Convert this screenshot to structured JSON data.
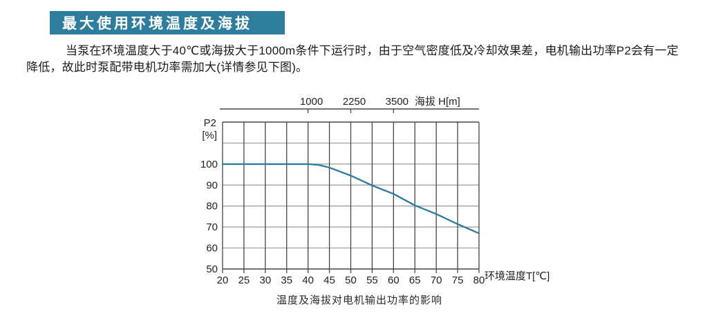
{
  "page": {
    "header": {
      "title": "最大使用环境温度及海拔",
      "bg_color": "#2e7d9d",
      "text_color": "#ffffff"
    },
    "paragraph": {
      "lines": [
        "当泵在环境温度大于40℃或海拔大于1000m条件下运行时，由于空气密度低及冷却效果差，电机输出功率P2会有一定",
        "降低，故此时泵配带电机功率需加大(详情参见下图)。"
      ]
    },
    "caption": "温度及海拔对电机输出功率的影响"
  },
  "chart_data": {
    "type": "line",
    "title": "温度及海拔对电机输出功率的影响",
    "x_axis": {
      "label": "环境温度T[℃]",
      "ticks": [
        20,
        25,
        30,
        35,
        40,
        45,
        50,
        55,
        60,
        65,
        70,
        75,
        80
      ],
      "range": [
        20,
        80
      ]
    },
    "y_axis": {
      "label_line1": "P2",
      "label_line2": "[%]",
      "tick_labels": [
        100,
        90,
        80,
        70,
        60,
        50
      ],
      "grid_values": [
        50,
        60,
        70,
        80,
        90,
        100,
        110,
        120
      ],
      "range": [
        50,
        120
      ]
    },
    "top_axis": {
      "label": "海拔 H[m]",
      "ticks": [
        {
          "label": "1000",
          "at_temp": 40
        },
        {
          "label": "2250",
          "at_temp": 50
        },
        {
          "label": "3500",
          "at_temp": 60
        }
      ]
    },
    "series": [
      {
        "name": "derating-curve",
        "color": "#2e7d9d",
        "points": [
          [
            20,
            100
          ],
          [
            40,
            100
          ],
          [
            42.5,
            99.6
          ],
          [
            45,
            98.3
          ],
          [
            50,
            94.5
          ],
          [
            55,
            89.8
          ],
          [
            60,
            85.8
          ],
          [
            65,
            80.3
          ],
          [
            70,
            76.2
          ],
          [
            75,
            71.4
          ],
          [
            80,
            67
          ]
        ]
      }
    ],
    "colors": {
      "grid_vertical": "#454545",
      "grid_horizontal": "#9a9a9a",
      "axis": "#454545",
      "tick_text": "#222222"
    },
    "layout_hints": {
      "grid": true,
      "legend": false
    }
  }
}
